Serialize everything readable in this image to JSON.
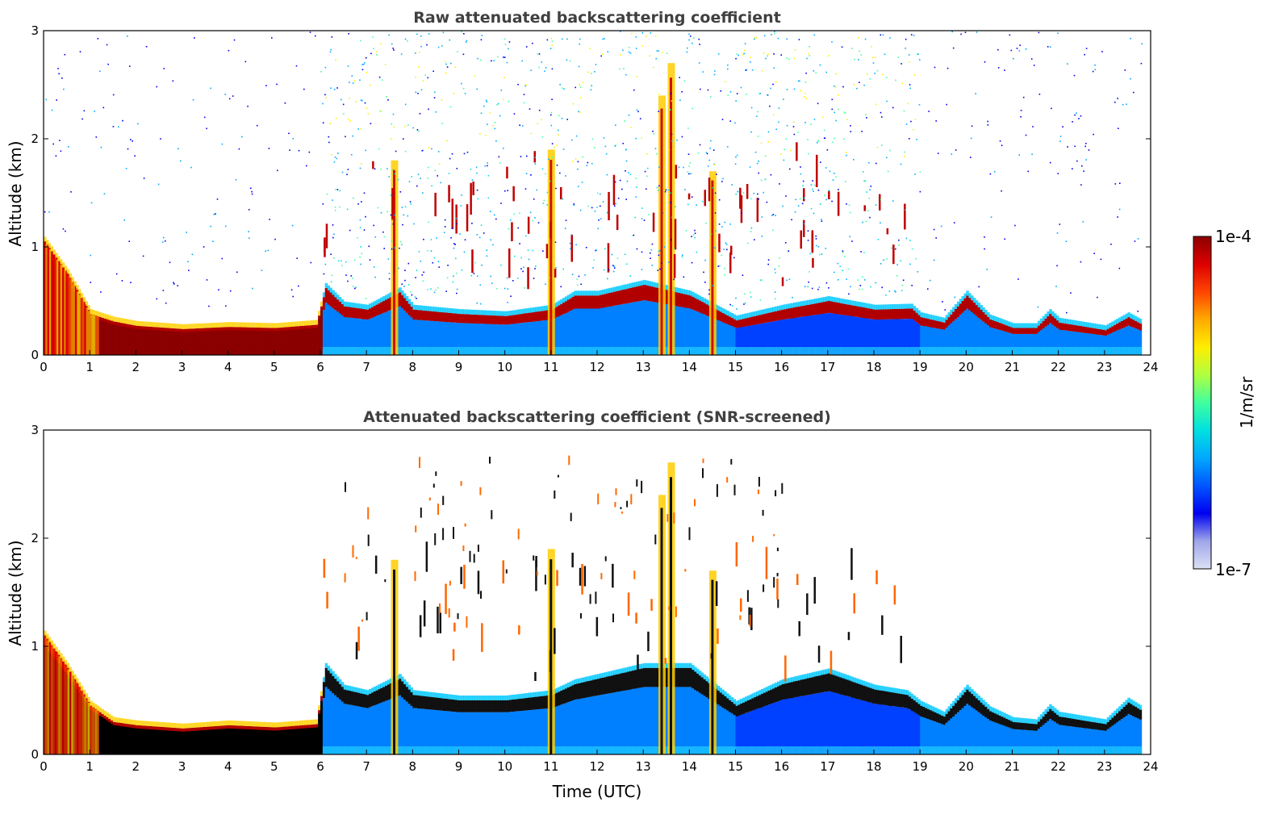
{
  "chart_data": [
    {
      "type": "heatmap",
      "title": "Raw attenuated backscattering coefficient",
      "xlabel": "",
      "ylabel": "Altitude (km)",
      "xlim": [
        0,
        24
      ],
      "ylim": [
        0,
        3
      ],
      "xticks": [
        0,
        1,
        2,
        3,
        4,
        5,
        6,
        7,
        8,
        9,
        10,
        11,
        12,
        13,
        14,
        15,
        16,
        17,
        18,
        19,
        20,
        21,
        22,
        23,
        24
      ],
      "yticks": [
        0,
        1,
        2,
        3
      ],
      "layer_height_km": [
        [
          0,
          1.05
        ],
        [
          0.5,
          0.75
        ],
        [
          1,
          0.38
        ],
        [
          1.5,
          0.31
        ],
        [
          2,
          0.27
        ],
        [
          3,
          0.24
        ],
        [
          4,
          0.26
        ],
        [
          5,
          0.25
        ],
        [
          5.9,
          0.28
        ],
        [
          6.1,
          0.62
        ],
        [
          6.5,
          0.45
        ],
        [
          7,
          0.42
        ],
        [
          7.7,
          0.58
        ],
        [
          8,
          0.42
        ],
        [
          9,
          0.38
        ],
        [
          10,
          0.36
        ],
        [
          11,
          0.42
        ],
        [
          11.5,
          0.55
        ],
        [
          12,
          0.55
        ],
        [
          13,
          0.65
        ],
        [
          14,
          0.55
        ],
        [
          15,
          0.32
        ],
        [
          16,
          0.42
        ],
        [
          17,
          0.5
        ],
        [
          18,
          0.42
        ],
        [
          18.8,
          0.43
        ],
        [
          19,
          0.35
        ],
        [
          19.5,
          0.3
        ],
        [
          20,
          0.55
        ],
        [
          20.5,
          0.33
        ],
        [
          21,
          0.25
        ],
        [
          21.5,
          0.25
        ],
        [
          21.8,
          0.38
        ],
        [
          22,
          0.3
        ],
        [
          23,
          0.23
        ],
        [
          23.5,
          0.35
        ],
        [
          23.8,
          0.28
        ]
      ],
      "vertical_plumes_utc": [
        7.6,
        11.0,
        13.4,
        13.6,
        14.5
      ],
      "noise_region_utc": [
        6,
        19
      ],
      "data_end_utc": 23.8
    },
    {
      "type": "heatmap",
      "title": "Attenuated backscattering coefficient (SNR-screened)",
      "xlabel": "Time (UTC)",
      "ylabel": "Altitude (km)",
      "xlim": [
        0,
        24
      ],
      "ylim": [
        0,
        3
      ],
      "xticks": [
        0,
        1,
        2,
        3,
        4,
        5,
        6,
        7,
        8,
        9,
        10,
        11,
        12,
        13,
        14,
        15,
        16,
        17,
        18,
        19,
        20,
        21,
        22,
        23,
        24
      ],
      "yticks": [
        0,
        1,
        2,
        3
      ],
      "layer_height_km": [
        [
          0,
          1.1
        ],
        [
          0.5,
          0.8
        ],
        [
          1,
          0.45
        ],
        [
          1.5,
          0.3
        ],
        [
          2,
          0.27
        ],
        [
          3,
          0.24
        ],
        [
          4,
          0.27
        ],
        [
          5,
          0.25
        ],
        [
          5.9,
          0.28
        ],
        [
          6.1,
          0.8
        ],
        [
          6.5,
          0.6
        ],
        [
          7,
          0.55
        ],
        [
          7.7,
          0.7
        ],
        [
          8,
          0.55
        ],
        [
          9,
          0.5
        ],
        [
          10,
          0.5
        ],
        [
          11,
          0.55
        ],
        [
          11.5,
          0.65
        ],
        [
          12,
          0.7
        ],
        [
          13,
          0.8
        ],
        [
          14,
          0.8
        ],
        [
          15,
          0.45
        ],
        [
          16,
          0.65
        ],
        [
          17,
          0.75
        ],
        [
          18,
          0.6
        ],
        [
          18.7,
          0.55
        ],
        [
          19,
          0.45
        ],
        [
          19.5,
          0.35
        ],
        [
          20,
          0.6
        ],
        [
          20.5,
          0.4
        ],
        [
          21,
          0.3
        ],
        [
          21.5,
          0.28
        ],
        [
          21.8,
          0.42
        ],
        [
          22,
          0.35
        ],
        [
          23,
          0.28
        ],
        [
          23.5,
          0.48
        ],
        [
          23.8,
          0.4
        ]
      ],
      "data_end_utc": 23.8
    }
  ],
  "colorbar": {
    "max_label": "1e-4",
    "min_label": "1e-7",
    "unit_label": "1/m/sr",
    "colors": [
      "#dde0f5",
      "#9ea6ea",
      "#0000f0",
      "#0055ff",
      "#00a8ff",
      "#00e0e0",
      "#40ff9f",
      "#b0ff40",
      "#ffee00",
      "#ffaa00",
      "#ff4400",
      "#dd0000",
      "#8b0000"
    ]
  }
}
